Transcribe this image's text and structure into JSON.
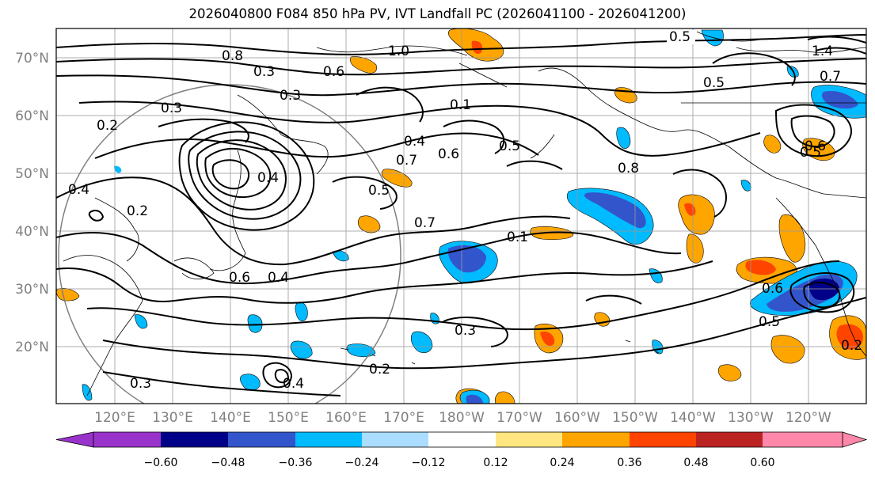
{
  "title": "2026040800 F084 850 hPa PV, IVT Landfall PC (2026041100 - 2026041200)",
  "lat_labels": [
    "70°N",
    "60°N",
    "50°N",
    "40°N",
    "30°N",
    "20°N"
  ],
  "lon_labels": [
    "120°E",
    "130°E",
    "140°E",
    "150°E",
    "160°E",
    "170°E",
    "180°W",
    "170°W",
    "160°W",
    "150°W",
    "140°W",
    "130°W",
    "120°W"
  ],
  "colorbar": {
    "ticks": [
      "−0.60",
      "−0.48",
      "−0.36",
      "−0.24",
      "−0.12",
      "0.12",
      "0.24",
      "0.36",
      "0.48",
      "0.60"
    ],
    "colors": [
      "#9933cc",
      "#000088",
      "#3355cc",
      "#00bbff",
      "#aaddff",
      "#ffffff",
      "#ffe680",
      "#ffa500",
      "#ff4400",
      "#bb2222",
      "#ff88aa"
    ]
  },
  "contour_labels": [
    "0.5",
    "1.4",
    "1.0",
    "0.8",
    "0.3",
    "0.6",
    "0.3",
    "0.2",
    "0.1",
    "0.3",
    "0.4",
    "0.6",
    "0.5",
    "0.8",
    "0.7",
    "0.5",
    "0.4",
    "0.4",
    "0.2",
    "0.7",
    "0.1",
    "0.6",
    "0.4",
    "0.3",
    "0.2",
    "0.3",
    "0.4",
    "0.5",
    "0.2",
    "0.6",
    "0.5",
    "0.7",
    "0.6",
    "0.5"
  ]
}
